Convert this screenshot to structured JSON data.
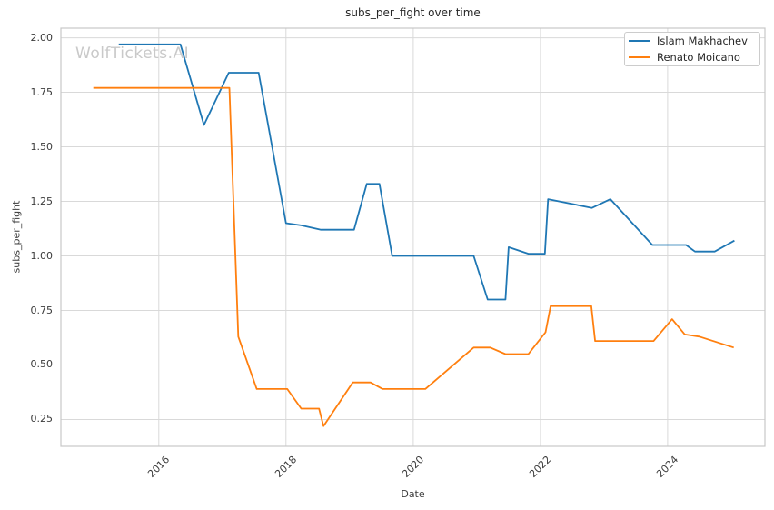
{
  "title": "subs_per_fight over time",
  "watermark": "WolfTickets.AI",
  "axes": {
    "xlabel": "Date",
    "ylabel": "subs_per_fight"
  },
  "colors": {
    "series_blue": "#1f77b4",
    "series_orange": "#ff7f0e",
    "gridline": "#d9d9d9",
    "plot_border": "#c7c7c7",
    "tick_text": "#3b3b3b",
    "title_text": "#262626",
    "watermark_text": "#c9c9c9"
  },
  "chart_data": {
    "type": "line",
    "title": "subs_per_fight over time",
    "xlabel": "Date",
    "ylabel": "subs_per_fight",
    "grid": true,
    "legend_position": "upper right",
    "xlim": [
      2014.46,
      2025.53
    ],
    "ylim": [
      0.127,
      2.044
    ],
    "x_ticks": [
      2016,
      2018,
      2020,
      2022,
      2024
    ],
    "x_tick_labels": [
      "2016",
      "2018",
      "2020",
      "2022",
      "2024"
    ],
    "y_ticks": [
      2.0,
      1.75,
      1.5,
      1.25,
      1.0,
      0.75,
      0.5,
      0.25
    ],
    "y_tick_labels": [
      "2.00",
      "1.75",
      "1.50",
      "1.25",
      "1.00",
      "0.75",
      "0.50",
      "0.25"
    ],
    "series": [
      {
        "name": "Islam Makhachev",
        "color": "#1f77b4",
        "points": [
          [
            2015.37,
            1.97
          ],
          [
            2016.34,
            1.97
          ],
          [
            2016.71,
            1.6
          ],
          [
            2017.1,
            1.84
          ],
          [
            2017.57,
            1.84
          ],
          [
            2018.0,
            1.15
          ],
          [
            2018.24,
            1.14
          ],
          [
            2018.55,
            1.12
          ],
          [
            2019.07,
            1.12
          ],
          [
            2019.27,
            1.33
          ],
          [
            2019.47,
            1.33
          ],
          [
            2019.67,
            1.0
          ],
          [
            2020.95,
            1.0
          ],
          [
            2021.17,
            0.8
          ],
          [
            2021.45,
            0.8
          ],
          [
            2021.5,
            1.04
          ],
          [
            2021.81,
            1.01
          ],
          [
            2022.07,
            1.01
          ],
          [
            2022.12,
            1.26
          ],
          [
            2022.81,
            1.22
          ],
          [
            2023.1,
            1.26
          ],
          [
            2023.76,
            1.05
          ],
          [
            2024.29,
            1.05
          ],
          [
            2024.43,
            1.02
          ],
          [
            2024.74,
            1.02
          ],
          [
            2025.05,
            1.07
          ]
        ]
      },
      {
        "name": "Renato Moicano",
        "color": "#ff7f0e",
        "points": [
          [
            2014.97,
            1.77
          ],
          [
            2017.11,
            1.77
          ],
          [
            2017.25,
            0.63
          ],
          [
            2017.54,
            0.39
          ],
          [
            2018.02,
            0.39
          ],
          [
            2018.24,
            0.3
          ],
          [
            2018.52,
            0.3
          ],
          [
            2018.59,
            0.22
          ],
          [
            2019.05,
            0.42
          ],
          [
            2019.33,
            0.42
          ],
          [
            2019.52,
            0.39
          ],
          [
            2020.19,
            0.39
          ],
          [
            2020.95,
            0.58
          ],
          [
            2021.21,
            0.58
          ],
          [
            2021.45,
            0.55
          ],
          [
            2021.81,
            0.55
          ],
          [
            2022.08,
            0.65
          ],
          [
            2022.16,
            0.77
          ],
          [
            2022.8,
            0.77
          ],
          [
            2022.86,
            0.61
          ],
          [
            2023.78,
            0.61
          ],
          [
            2024.07,
            0.71
          ],
          [
            2024.27,
            0.64
          ],
          [
            2024.5,
            0.63
          ],
          [
            2025.04,
            0.58
          ]
        ]
      }
    ]
  }
}
